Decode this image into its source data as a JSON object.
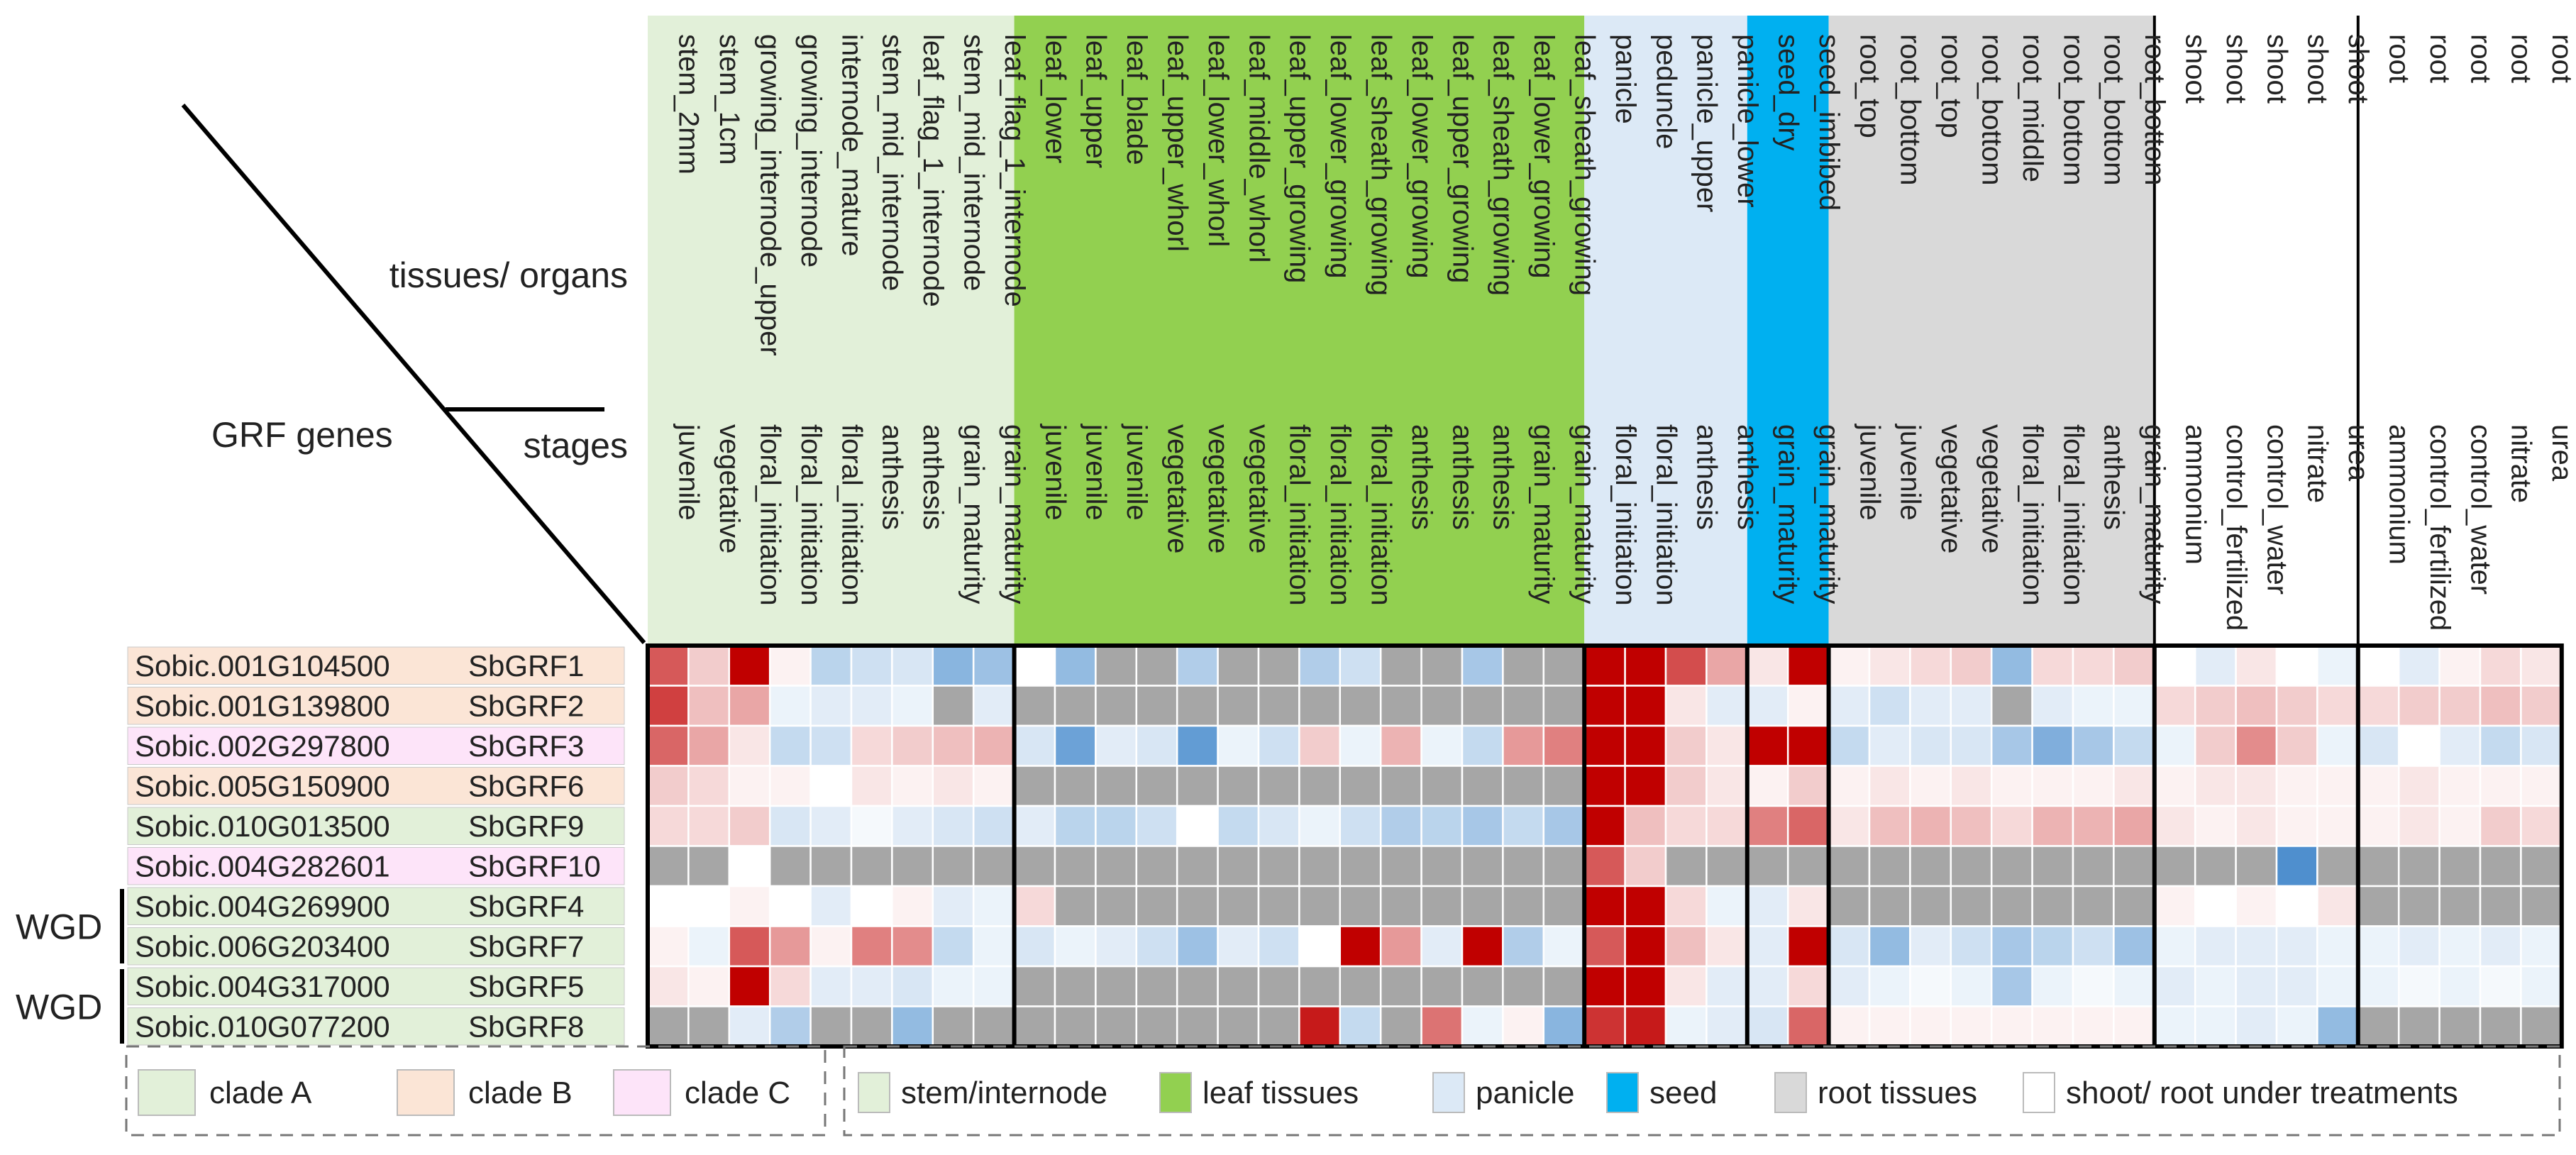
{
  "chart_data": {
    "type": "heatmap",
    "title": "",
    "corner": {
      "genes_label": "GRF genes",
      "tissues_label": "tissues/ organs",
      "stages_label": "stages"
    },
    "columns": [
      {
        "tissue": "stem_2mm",
        "stage": "juvenile",
        "group": "stem"
      },
      {
        "tissue": "stem_1cm",
        "stage": "vegetative",
        "group": "stem"
      },
      {
        "tissue": "growing_internode_upper",
        "stage": "floral_initiation",
        "group": "stem"
      },
      {
        "tissue": "growing_internode",
        "stage": "floral_initiation",
        "group": "stem"
      },
      {
        "tissue": "internode_mature",
        "stage": "floral_initiation",
        "group": "stem"
      },
      {
        "tissue": "stem_mid_internode",
        "stage": "anthesis",
        "group": "stem"
      },
      {
        "tissue": "leaf_flag_1_internode",
        "stage": "anthesis",
        "group": "stem"
      },
      {
        "tissue": "stem_mid_internode",
        "stage": "grain_maturity",
        "group": "stem"
      },
      {
        "tissue": "leaf_flag_1_internode",
        "stage": "grain_maturity",
        "group": "stem"
      },
      {
        "tissue": "leaf_lower",
        "stage": "juvenile",
        "group": "leaf"
      },
      {
        "tissue": "leaf_upper",
        "stage": "juvenile",
        "group": "leaf"
      },
      {
        "tissue": "leaf_blade",
        "stage": "juvenile",
        "group": "leaf"
      },
      {
        "tissue": "leaf_upper_whorl",
        "stage": "vegetative",
        "group": "leaf"
      },
      {
        "tissue": "leaf_lower_whorl",
        "stage": "vegetative",
        "group": "leaf"
      },
      {
        "tissue": "leaf_middle_whorl",
        "stage": "vegetative",
        "group": "leaf"
      },
      {
        "tissue": "leaf_upper_growing",
        "stage": "floral_initiation",
        "group": "leaf"
      },
      {
        "tissue": "leaf_lower_growing",
        "stage": "floral_initiation",
        "group": "leaf"
      },
      {
        "tissue": "leaf_sheath_growing",
        "stage": "floral_initiation",
        "group": "leaf"
      },
      {
        "tissue": "leaf_lower_growing",
        "stage": "anthesis",
        "group": "leaf"
      },
      {
        "tissue": "leaf_upper_growing",
        "stage": "anthesis",
        "group": "leaf"
      },
      {
        "tissue": "leaf_sheath_growing",
        "stage": "anthesis",
        "group": "leaf"
      },
      {
        "tissue": "leaf_lower_growing",
        "stage": "grain_maturity",
        "group": "leaf"
      },
      {
        "tissue": "leaf_sheath_growing",
        "stage": "grain_maturity",
        "group": "leaf"
      },
      {
        "tissue": "panicle",
        "stage": "floral_initiation",
        "group": "panicle"
      },
      {
        "tissue": "peduncle",
        "stage": "floral_initiation",
        "group": "panicle"
      },
      {
        "tissue": "panicle_upper",
        "stage": "anthesis",
        "group": "panicle"
      },
      {
        "tissue": "panicle_lower",
        "stage": "anthesis",
        "group": "panicle"
      },
      {
        "tissue": "seed_dry",
        "stage": "grain_maturity",
        "group": "seed"
      },
      {
        "tissue": "seed_imbibed",
        "stage": "grain_maturity",
        "group": "seed"
      },
      {
        "tissue": "root_top",
        "stage": "juvenile",
        "group": "root"
      },
      {
        "tissue": "root_bottom",
        "stage": "juvenile",
        "group": "root"
      },
      {
        "tissue": "root_top",
        "stage": "vegetative",
        "group": "root"
      },
      {
        "tissue": "root_bottom",
        "stage": "vegetative",
        "group": "root"
      },
      {
        "tissue": "root_middle",
        "stage": "floral_initiation",
        "group": "root"
      },
      {
        "tissue": "root_bottom",
        "stage": "floral_initiation",
        "group": "root"
      },
      {
        "tissue": "root_bottom",
        "stage": "anthesis",
        "group": "root"
      },
      {
        "tissue": "root_bottom",
        "stage": "grain_maturity",
        "group": "root"
      },
      {
        "tissue": "shoot",
        "stage": "ammonium",
        "group": "shoot"
      },
      {
        "tissue": "shoot",
        "stage": "control_fertilized",
        "group": "shoot"
      },
      {
        "tissue": "shoot",
        "stage": "control_water",
        "group": "shoot"
      },
      {
        "tissue": "shoot",
        "stage": "nitrate",
        "group": "shoot"
      },
      {
        "tissue": "shoot",
        "stage": "urea",
        "group": "shoot"
      },
      {
        "tissue": "root",
        "stage": "ammonium",
        "group": "rootT"
      },
      {
        "tissue": "root",
        "stage": "control_fertilized",
        "group": "rootT"
      },
      {
        "tissue": "root",
        "stage": "control_water",
        "group": "rootT"
      },
      {
        "tissue": "root",
        "stage": "nitrate",
        "group": "rootT"
      },
      {
        "tissue": "root",
        "stage": "urea",
        "group": "rootT"
      }
    ],
    "group_colors": {
      "stem": "#e2f0d9",
      "leaf": "#92d050",
      "panicle": "#dce9f6",
      "seed": "#00b0f0",
      "root": "#d9d9d9",
      "shoot": "#ffffff",
      "rootT": "#ffffff"
    },
    "group_order": [
      "stem",
      "leaf",
      "panicle",
      "seed",
      "root",
      "shoot",
      "rootT"
    ],
    "rows": [
      {
        "id": "Sobic.001G104500",
        "name": "SbGRF1",
        "clade": "B"
      },
      {
        "id": "Sobic.001G139800",
        "name": "SbGRF2",
        "clade": "B"
      },
      {
        "id": "Sobic.002G297800",
        "name": "SbGRF3",
        "clade": "C"
      },
      {
        "id": "Sobic.005G150900",
        "name": "SbGRF6",
        "clade": "B"
      },
      {
        "id": "Sobic.010G013500",
        "name": "SbGRF9",
        "clade": "A"
      },
      {
        "id": "Sobic.004G282601",
        "name": "SbGRF10",
        "clade": "C"
      },
      {
        "id": "Sobic.004G269900",
        "name": "SbGRF4",
        "clade": "A"
      },
      {
        "id": "Sobic.006G203400",
        "name": "SbGRF7",
        "clade": "A"
      },
      {
        "id": "Sobic.004G317000",
        "name": "SbGRF5",
        "clade": "A"
      },
      {
        "id": "Sobic.010G077200",
        "name": "SbGRF8",
        "clade": "A"
      }
    ],
    "clade_colors": {
      "A": "#e2f0d9",
      "B": "#fbe5d6",
      "C": "#fde4f9"
    },
    "wgd_pairs": [
      {
        "label": "WGD",
        "rows": [
          6,
          7
        ]
      },
      {
        "label": "WGD",
        "rows": [
          8,
          9
        ]
      }
    ],
    "color_scale": {
      "low": "#3b83c9",
      "mid": "#ffffff",
      "high": "#c00000",
      "missing": "#a6a6a6",
      "range": [
        -2,
        2
      ]
    },
    "values": [
      [
        1.3,
        0.4,
        2,
        0.1,
        -0.7,
        -0.5,
        -0.4,
        -1.2,
        -1,
        0,
        -1.1,
        null,
        null,
        -0.8,
        null,
        null,
        -0.8,
        -0.5,
        null,
        null,
        -0.9,
        null,
        null,
        2,
        2,
        1.4,
        0.7,
        0.2,
        2,
        0.1,
        0.2,
        0.3,
        0.4,
        -1.1,
        0.3,
        0.3,
        0.4,
        0,
        -0.3,
        0.2,
        0,
        -0.2,
        0,
        -0.3,
        0.1,
        0.3,
        0.2
      ],
      [
        1.5,
        0.5,
        0.7,
        -0.2,
        -0.3,
        -0.3,
        -0.2,
        null,
        -0.3,
        null,
        null,
        null,
        null,
        null,
        null,
        null,
        null,
        null,
        null,
        null,
        null,
        null,
        null,
        2,
        2,
        0.2,
        -0.3,
        -0.3,
        0.1,
        -0.3,
        -0.5,
        -0.3,
        -0.3,
        null,
        -0.3,
        -0.2,
        -0.2,
        0.3,
        0.4,
        0.5,
        0.4,
        0.3,
        0.3,
        0.4,
        0.4,
        0.5,
        0.4
      ],
      [
        1.2,
        0.7,
        0.2,
        -0.6,
        -0.5,
        0.3,
        0.4,
        0.5,
        0.6,
        -0.4,
        -1.5,
        -0.3,
        -0.4,
        -1.6,
        -0.2,
        -0.5,
        0.4,
        -0.2,
        0.6,
        -0.2,
        -0.6,
        0.8,
        1,
        2,
        2,
        0.4,
        0.2,
        2,
        2,
        -0.6,
        -0.3,
        -0.4,
        -0.4,
        -0.9,
        -1.3,
        -0.9,
        -0.6,
        -0.2,
        0.4,
        0.9,
        0.4,
        -0.2,
        -0.4,
        0,
        -0.3,
        -0.6,
        -0.4
      ],
      [
        0.4,
        0.3,
        0.1,
        0.1,
        0,
        0.2,
        0.1,
        0.2,
        0.1,
        null,
        null,
        null,
        null,
        null,
        null,
        null,
        null,
        null,
        null,
        null,
        null,
        null,
        null,
        2,
        2,
        0.4,
        0.2,
        0.1,
        0.4,
        0.1,
        0.2,
        0.1,
        0.2,
        0.1,
        0.1,
        0.1,
        0.2,
        0.1,
        0.2,
        0.2,
        0.1,
        0.1,
        0.1,
        0.2,
        0.1,
        0.1,
        0.1
      ],
      [
        0.3,
        0.3,
        0.4,
        -0.4,
        -0.3,
        -0.1,
        -0.3,
        -0.4,
        -0.5,
        -0.3,
        -0.7,
        -0.7,
        -0.5,
        0,
        -0.6,
        -0.4,
        -0.2,
        -0.5,
        -0.8,
        -0.7,
        -0.9,
        -0.6,
        -0.9,
        2,
        0.5,
        0.3,
        0.3,
        1,
        1.2,
        0.2,
        0.5,
        0.6,
        0.5,
        0.3,
        0.6,
        0.6,
        0.7,
        0.2,
        0.1,
        0.2,
        0.1,
        0.1,
        0.1,
        0.2,
        0.1,
        0.4,
        0.3
      ],
      [
        null,
        null,
        0,
        null,
        null,
        null,
        null,
        null,
        null,
        null,
        null,
        null,
        null,
        null,
        null,
        null,
        null,
        null,
        null,
        null,
        null,
        null,
        null,
        1.3,
        0.4,
        null,
        null,
        null,
        null,
        null,
        null,
        null,
        null,
        null,
        null,
        null,
        null,
        null,
        null,
        null,
        -1.8,
        null,
        null,
        null,
        null,
        null,
        null
      ],
      [
        0,
        0,
        0.1,
        0,
        -0.3,
        0,
        0.1,
        -0.3,
        -0.2,
        0.3,
        null,
        null,
        null,
        null,
        null,
        null,
        null,
        null,
        null,
        null,
        null,
        null,
        null,
        2,
        2,
        0.3,
        -0.2,
        -0.3,
        0.2,
        null,
        null,
        null,
        null,
        null,
        null,
        null,
        null,
        0.1,
        0,
        0.1,
        0,
        0.2,
        null,
        null,
        null,
        null,
        null
      ],
      [
        0.1,
        -0.2,
        1.3,
        0.8,
        0.1,
        1,
        0.9,
        -0.6,
        -0.2,
        -0.4,
        -0.2,
        -0.3,
        -0.5,
        -1,
        -0.3,
        -0.5,
        0,
        2,
        0.8,
        -0.3,
        2,
        -0.8,
        -0.2,
        1.3,
        2,
        0.5,
        0.2,
        -0.3,
        2,
        -0.4,
        -1.1,
        -0.3,
        -0.5,
        -0.9,
        -0.7,
        -0.5,
        -1,
        -0.2,
        -0.3,
        -0.3,
        -0.3,
        -0.2,
        -0.2,
        -0.3,
        -0.2,
        -0.3,
        -0.2
      ],
      [
        0.2,
        0.1,
        2,
        0.3,
        -0.3,
        -0.3,
        -0.4,
        -0.2,
        -0.2,
        null,
        null,
        null,
        null,
        null,
        null,
        null,
        null,
        null,
        null,
        null,
        null,
        null,
        null,
        2,
        2,
        0.2,
        -0.3,
        -0.3,
        0.3,
        -0.3,
        -0.2,
        -0.1,
        -0.2,
        -0.9,
        -0.2,
        -0.1,
        -0.2,
        -0.3,
        -0.2,
        -0.3,
        -0.3,
        -0.2,
        -0.2,
        -0.1,
        -0.2,
        -0.1,
        -0.2
      ],
      [
        null,
        null,
        -0.3,
        -0.8,
        null,
        null,
        -1.1,
        null,
        null,
        null,
        null,
        null,
        null,
        null,
        null,
        null,
        1.8,
        -0.6,
        null,
        1.1,
        -0.2,
        0.1,
        -1.2,
        1.6,
        1.8,
        -0.2,
        -0.3,
        -0.4,
        1.2,
        0.1,
        0.1,
        0.1,
        0.1,
        0.1,
        0.1,
        0.1,
        0.1,
        -0.2,
        -0.2,
        -0.3,
        -0.2,
        -1.1,
        null,
        null,
        null,
        null,
        null
      ]
    ]
  },
  "legend": {
    "clades": [
      {
        "label": "clade A",
        "color": "#e2f0d9"
      },
      {
        "label": "clade B",
        "color": "#fbe5d6"
      },
      {
        "label": "clade C",
        "color": "#fde4f9"
      }
    ],
    "groups": [
      {
        "label": "stem/internode",
        "color": "#e2f0d9"
      },
      {
        "label": "leaf tissues",
        "color": "#92d050"
      },
      {
        "label": "panicle",
        "color": "#dce9f6"
      },
      {
        "label": "seed",
        "color": "#00b0f0"
      },
      {
        "label": "root tissues",
        "color": "#d9d9d9"
      },
      {
        "label": "shoot/ root under treatments",
        "color": "#ffffff"
      }
    ]
  }
}
